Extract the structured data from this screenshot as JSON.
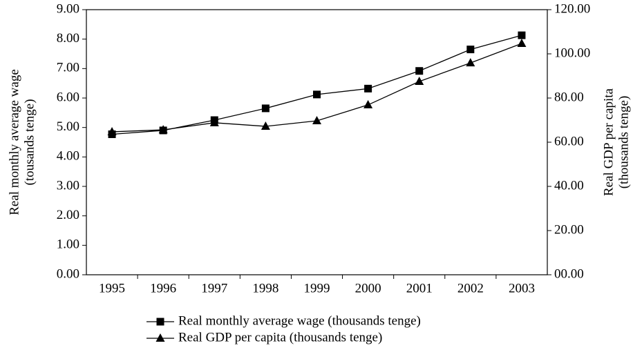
{
  "chart_data": {
    "type": "line",
    "ylabel": [
      "Real monthly average wage",
      "(tousands tenge)"
    ],
    "y2label": [
      "Real GDP per capita",
      "(thousands tenge)"
    ],
    "categories": [
      "1995",
      "1996",
      "1997",
      "1998",
      "1999",
      "2000",
      "2001",
      "2002",
      "2003"
    ],
    "series": [
      {
        "name": "Real monthly average wage (thousands tenge)",
        "color": "#000000",
        "marker": "square",
        "values": [
          4.77,
          4.9,
          5.25,
          5.65,
          6.12,
          6.32,
          6.92,
          7.65,
          8.13
        ]
      },
      {
        "name": "Real GDP per capita (thousands tenge)",
        "color": "#000000",
        "marker": "triangle",
        "axis": "y2",
        "values": [
          64.7,
          65.6,
          68.8,
          67.2,
          69.7,
          76.9,
          87.5,
          95.9,
          104.7
        ]
      }
    ],
    "ylim": [
      0,
      9
    ],
    "yticks": [
      {
        "value": 0,
        "label": "0.00"
      },
      {
        "value": 1,
        "label": "1.00"
      },
      {
        "value": 2,
        "label": "2.00"
      },
      {
        "value": 3,
        "label": "3.00"
      },
      {
        "value": 4,
        "label": "4.00"
      },
      {
        "value": 5,
        "label": "5.00"
      },
      {
        "value": 6,
        "label": "6.00"
      },
      {
        "value": 7,
        "label": "7.00"
      },
      {
        "value": 8,
        "label": "8.00"
      },
      {
        "value": 9,
        "label": "9.00"
      }
    ],
    "y2lim": [
      0,
      120
    ],
    "y2ticks": [
      {
        "value": 0,
        "label": "00.00"
      },
      {
        "value": 20,
        "label": "20.00"
      },
      {
        "value": 40,
        "label": "40.00"
      },
      {
        "value": 60,
        "label": "60.00"
      },
      {
        "value": 80,
        "label": "80.00"
      },
      {
        "value": 100,
        "label": "100.00"
      },
      {
        "value": 120,
        "label": "120.00"
      }
    ],
    "legend": "bottom"
  }
}
